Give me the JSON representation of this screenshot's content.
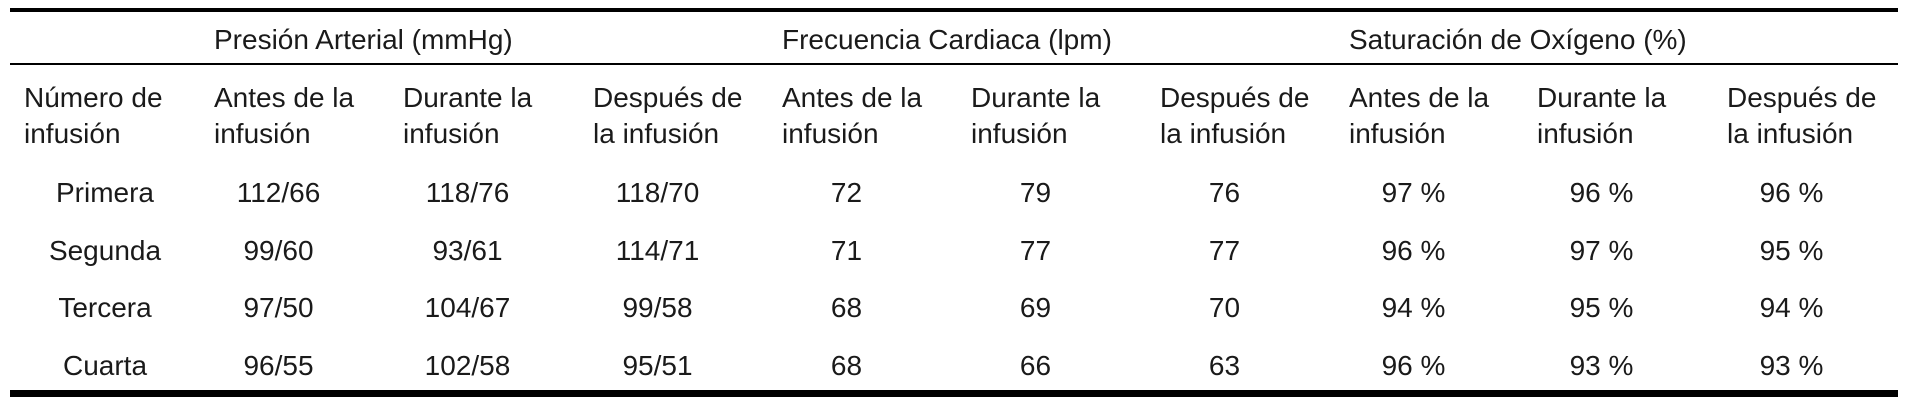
{
  "table": {
    "group_headers": [
      "Presión Arterial (mmHg)",
      "Frecuencia Cardiaca (lpm)",
      "Saturación de Oxígeno (%)"
    ],
    "column_headers": [
      "Número de\ninfusión",
      "Antes de la\ninfusión",
      "Durante la\ninfusión",
      "Después de\nla infusión",
      "Antes de la\ninfusión",
      "Durante la\ninfusión",
      "Después de\nla infusión",
      "Antes de la\ninfusión",
      "Durante la\ninfusión",
      "Después de\nla infusión"
    ],
    "rows": [
      [
        "Primera",
        "112/66",
        "118/76",
        "118/70",
        "72",
        "79",
        "76",
        "97 %",
        "96 %",
        "96 %"
      ],
      [
        "Segunda",
        "99/60",
        "93/61",
        "114/71",
        "71",
        "77",
        "77",
        "96 %",
        "97 %",
        "95 %"
      ],
      [
        "Tercera",
        "97/50",
        "104/67",
        "99/58",
        "68",
        "69",
        "70",
        "94 %",
        "95 %",
        "94 %"
      ],
      [
        "Cuarta",
        "96/55",
        "102/58",
        "95/51",
        "68",
        "66",
        "63",
        "96 %",
        "93 %",
        "93 %"
      ]
    ]
  }
}
